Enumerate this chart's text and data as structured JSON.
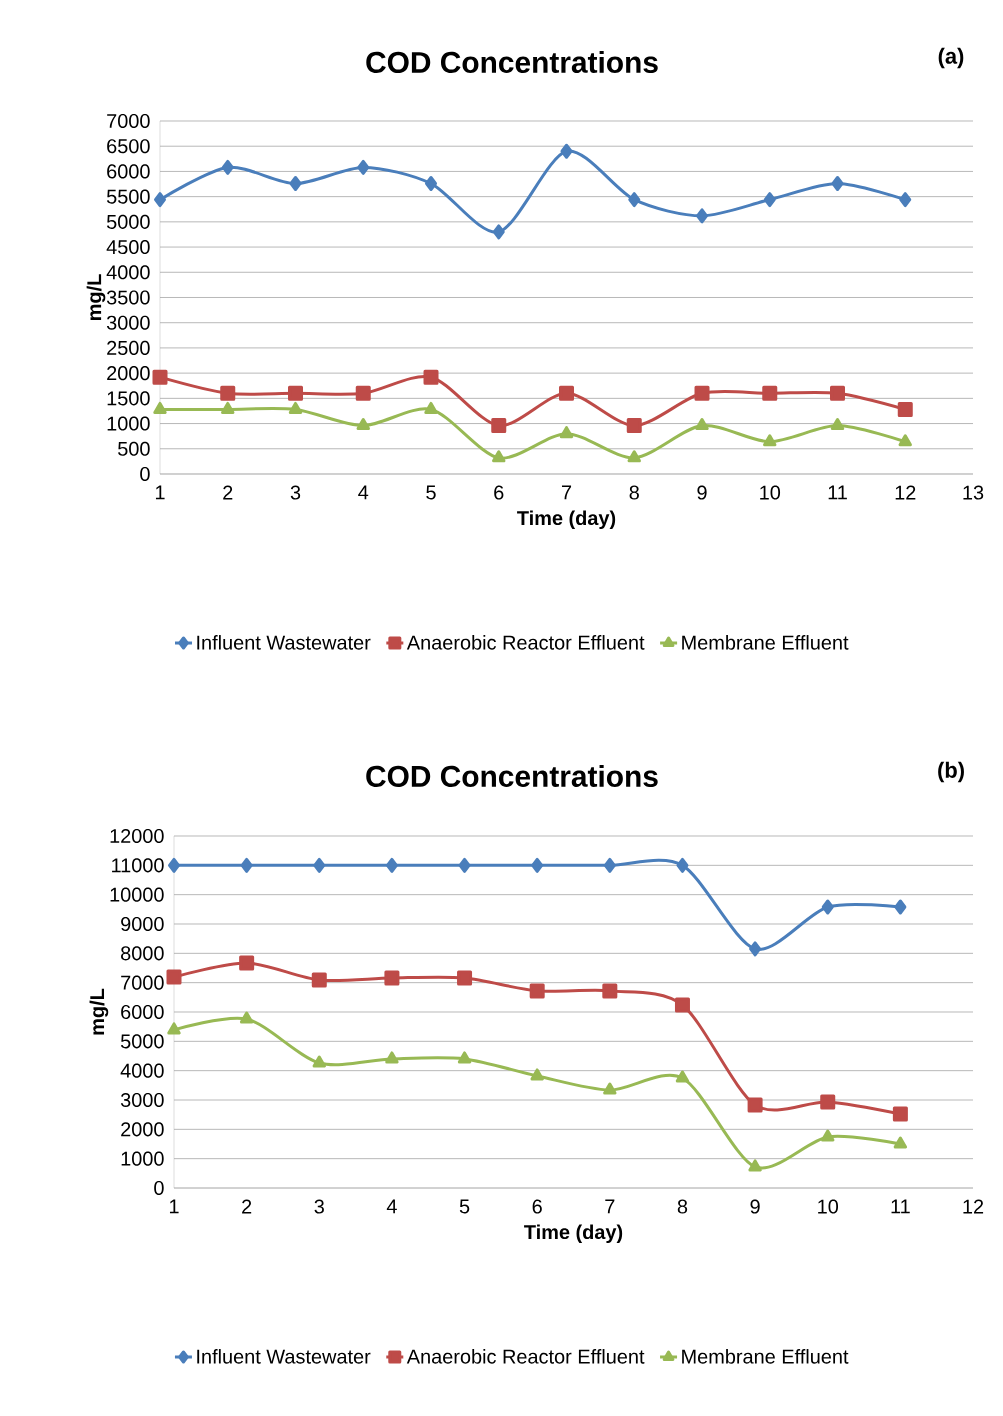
{
  "chart_data": [
    {
      "type": "line",
      "title": "COD Concentrations",
      "xlabel": "Time (day)",
      "ylabel": "mg/L",
      "annotations": [
        "(a)"
      ],
      "x": [
        1,
        2,
        3,
        4,
        5,
        6,
        7,
        8,
        9,
        10,
        11,
        12
      ],
      "xlim": [
        1,
        13
      ],
      "xticks": [
        1,
        2,
        3,
        4,
        5,
        6,
        7,
        8,
        9,
        10,
        11,
        12,
        13
      ],
      "ylim": [
        0,
        7000
      ],
      "yticks": [
        0,
        500,
        1000,
        1500,
        2000,
        2500,
        3000,
        3500,
        4000,
        4500,
        5000,
        5500,
        6000,
        6500,
        7000
      ],
      "grid": "y",
      "legend": "bottom",
      "line_style": "solid",
      "series": [
        {
          "name": "Influent Wastewater",
          "color": "#4a7ebb",
          "marker": "diamond",
          "values": [
            5440,
            6080,
            5760,
            6080,
            5760,
            4800,
            6400,
            5440,
            5120,
            5440,
            5760,
            5440
          ]
        },
        {
          "name": "Anaerobic Reactor Effluent",
          "color": "#be4b48",
          "marker": "square",
          "values": [
            1920,
            1600,
            1600,
            1600,
            1920,
            960,
            1600,
            960,
            1600,
            1600,
            1600,
            1280
          ]
        },
        {
          "name": "Membrane Effluent",
          "color": "#98b954",
          "marker": "triangle",
          "values": [
            1280,
            1280,
            1280,
            960,
            1280,
            320,
            800,
            320,
            960,
            640,
            960,
            640
          ]
        }
      ]
    },
    {
      "type": "line",
      "title": "COD Concentrations",
      "xlabel": "Time (day)",
      "ylabel": "mg/L",
      "annotations": [
        "(b)"
      ],
      "x": [
        1,
        2,
        3,
        4,
        5,
        6,
        7,
        8,
        9,
        10,
        11
      ],
      "xlim": [
        1,
        12
      ],
      "xticks": [
        1,
        2,
        3,
        4,
        5,
        6,
        7,
        8,
        9,
        10,
        11,
        12
      ],
      "ylim": [
        0,
        12000
      ],
      "yticks": [
        0,
        1000,
        2000,
        3000,
        4000,
        5000,
        6000,
        7000,
        8000,
        9000,
        10000,
        11000,
        12000
      ],
      "grid": "y",
      "legend": "bottom",
      "line_style": "solid",
      "series": [
        {
          "name": "Influent Wastewater",
          "color": "#4a7ebb",
          "marker": "diamond",
          "values": [
            11000,
            11000,
            11000,
            11000,
            11000,
            11000,
            11000,
            11000,
            8150,
            9580,
            9580
          ]
        },
        {
          "name": "Anaerobic Reactor Effluent",
          "color": "#be4b48",
          "marker": "square",
          "values": [
            7190,
            7670,
            7090,
            7160,
            7160,
            6720,
            6720,
            6240,
            2830,
            2930,
            2520
          ]
        },
        {
          "name": "Membrane Effluent",
          "color": "#98b954",
          "marker": "triangle",
          "values": [
            5390,
            5760,
            4260,
            4400,
            4400,
            3820,
            3340,
            3750,
            720,
            1740,
            1500
          ]
        }
      ]
    }
  ]
}
